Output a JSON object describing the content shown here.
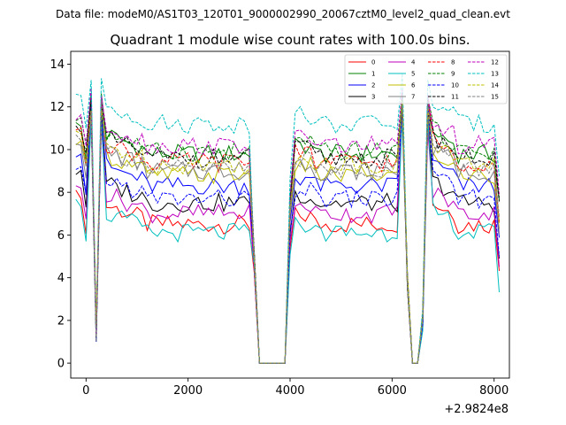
{
  "chart_data": {
    "type": "line",
    "suptitle": "Data file: modeM0/AS1T03_120T01_9000002990_20067cztM0_level2_quad_clean.evt",
    "title": "Quadrant 1 module wise count rates with 100.0s bins.",
    "xlabel": "",
    "ylabel": "",
    "x_offset_label": "+2.9824e8",
    "xlim": [
      -300,
      8300
    ],
    "ylim": [
      -0.7,
      14.6
    ],
    "x_ticks": [
      0,
      2000,
      4000,
      6000,
      8000
    ],
    "x_tick_labels": [
      "0",
      "2000",
      "4000",
      "6000",
      "8000"
    ],
    "y_ticks": [
      0,
      2,
      4,
      6,
      8,
      10,
      12,
      14
    ],
    "y_tick_labels": [
      "0",
      "2",
      "4",
      "6",
      "8",
      "10",
      "12",
      "14"
    ],
    "legend_position": "top-right",
    "legend_columns": 4,
    "x_range": {
      "start": -200,
      "step": 100,
      "count": 84
    },
    "gap_x": [
      3400,
      3900
    ],
    "series": [
      {
        "name": "0",
        "color": "#ff0000",
        "dash": "solid",
        "level": 6.5,
        "spike": 12.0
      },
      {
        "name": "1",
        "color": "#008000",
        "dash": "solid",
        "level": 9.8,
        "spike": 12.4
      },
      {
        "name": "2",
        "color": "#0000ff",
        "dash": "solid",
        "level": 8.3,
        "spike": 12.2
      },
      {
        "name": "3",
        "color": "#000000",
        "dash": "solid",
        "level": 7.5,
        "spike": 11.6
      },
      {
        "name": "4",
        "color": "#bf00bf",
        "dash": "solid",
        "level": 7.0,
        "spike": 11.2
      },
      {
        "name": "5",
        "color": "#00bfbf",
        "dash": "solid",
        "level": 6.1,
        "spike": 11.8
      },
      {
        "name": "6",
        "color": "#bfbf00",
        "dash": "solid",
        "level": 8.8,
        "spike": 12.0
      },
      {
        "name": "7",
        "color": "#808080",
        "dash": "solid",
        "level": 9.0,
        "spike": 12.0
      },
      {
        "name": "8",
        "color": "#ff0000",
        "dash": "dashed",
        "level": 9.4,
        "spike": 12.2
      },
      {
        "name": "9",
        "color": "#008000",
        "dash": "dashed",
        "level": 9.9,
        "spike": 12.3
      },
      {
        "name": "10",
        "color": "#0000ff",
        "dash": "dashed",
        "level": 7.7,
        "spike": 11.9
      },
      {
        "name": "11",
        "color": "#000000",
        "dash": "dashed",
        "level": 9.6,
        "spike": 12.1
      },
      {
        "name": "12",
        "color": "#bf00bf",
        "dash": "dashed",
        "level": 10.2,
        "spike": 12.5
      },
      {
        "name": "13",
        "color": "#00bfbf",
        "dash": "dashed",
        "level": 11.2,
        "spike": 13.4
      },
      {
        "name": "14",
        "color": "#bfbf00",
        "dash": "dashed",
        "level": 9.3,
        "spike": 12.2
      },
      {
        "name": "15",
        "color": "#808080",
        "dash": "dashed",
        "level": 9.1,
        "spike": 12.0
      }
    ]
  }
}
